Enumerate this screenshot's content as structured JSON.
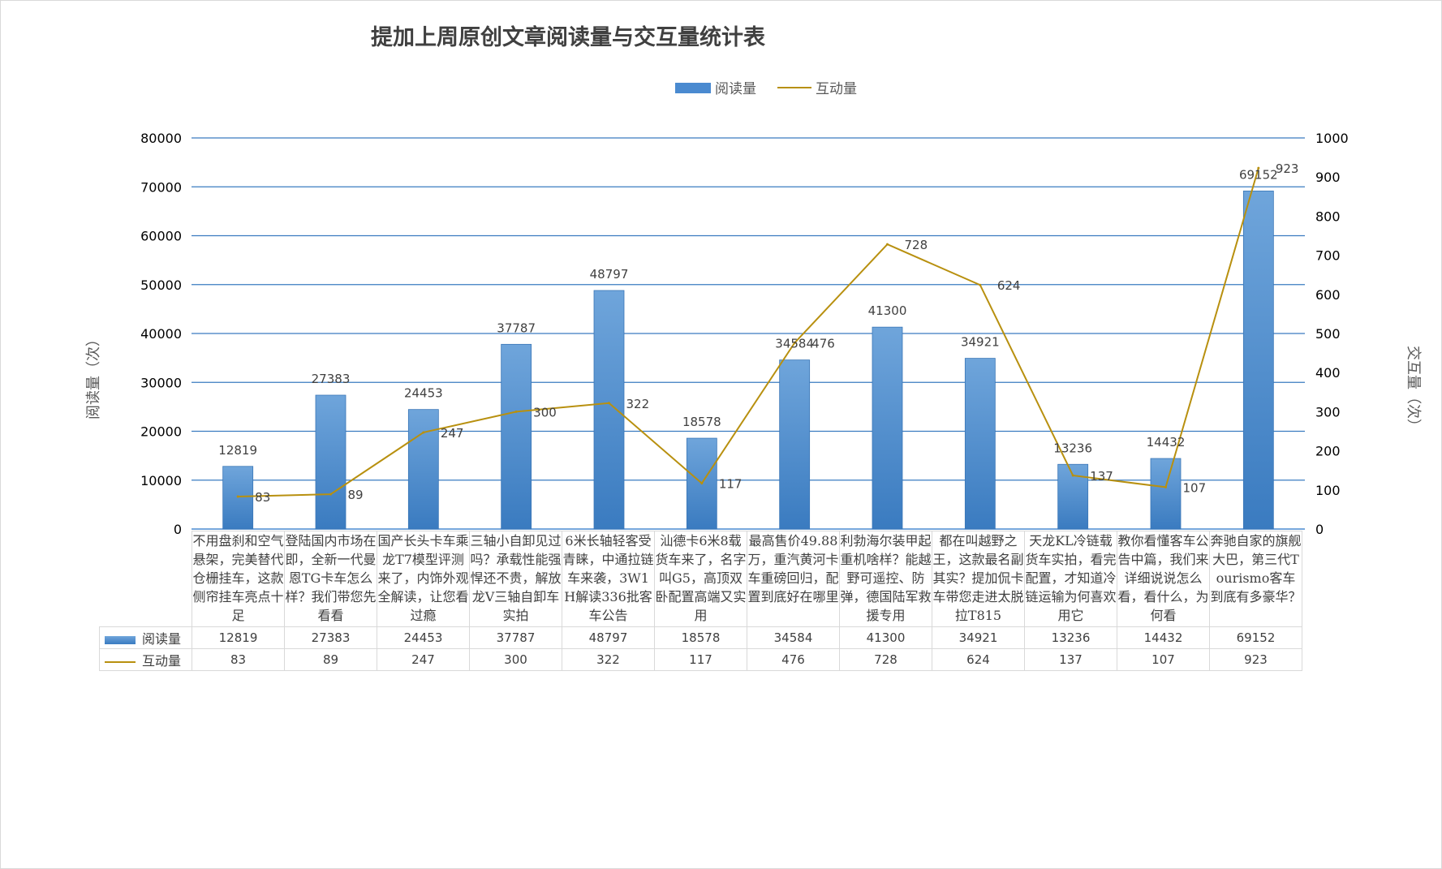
{
  "chart_data": {
    "type": "bar",
    "title": "提加上周原创文章阅读量与交互量统计表",
    "ylabel": "阅读量（次）",
    "y2label": "交互量（次）",
    "ylim": [
      0,
      80000
    ],
    "y2lim": [
      0,
      1000
    ],
    "yticks": [
      "0",
      "10000",
      "20000",
      "30000",
      "40000",
      "50000",
      "60000",
      "70000",
      "80000"
    ],
    "y2ticks": [
      "0",
      "100",
      "200",
      "300",
      "400",
      "500",
      "600",
      "700",
      "800",
      "900",
      "1000"
    ],
    "legend_position": "top-center",
    "grid": true,
    "categories": [
      "不用盘刹和空气悬架，完美替代仓栅挂车，这款侧帘挂车亮点十足",
      "登陆国内市场在即，全新一代曼恩TG卡车怎么样？我们带您先看看",
      "国产长头卡车乘龙T7模型评测来了，内饰外观全解读，让您看过瘾",
      "三轴小自卸见过吗？承载性能强悍还不贵，解放龙V三轴自卸车实拍",
      "6米长轴轻客受青睐，中通拉链车来袭，3W1H解读336批客车公告",
      "汕德卡6米8载货车来了，名字叫G5，高顶双卧配置高端又实用",
      "最高售价49.88万，重汽黄河卡车重磅回归，配置到底好在哪里",
      "利勃海尔装甲起重机啥样？能越野可遥控、防弹，德国陆军救援专用",
      "都在叫越野之王，这款最名副其实？提加侃卡车带您走进太脱拉T815",
      "天龙KL冷链载货车实拍，看完配置，才知道冷链运输为何喜欢用它",
      "教你看懂客车公告中篇，我们来详细说说怎么看，看什么，为何看",
      "奔驰自家的旗舰大巴，第三代Tourismo客车到底有多豪华？"
    ],
    "series": [
      {
        "name": "阅读量",
        "type": "bar",
        "axis": "left",
        "color": "#4a8ad0",
        "values": [
          12819,
          27383,
          24453,
          37787,
          48797,
          18578,
          34584,
          41300,
          34921,
          13236,
          14432,
          69152
        ],
        "labels": [
          "12819",
          "27383",
          "24453",
          "37787",
          "48797",
          "18578",
          "34584",
          "41300",
          "34921",
          "13236",
          "14432",
          "69152"
        ]
      },
      {
        "name": "互动量",
        "type": "line",
        "axis": "right",
        "color": "#b8900f",
        "values": [
          83,
          89,
          247,
          300,
          322,
          117,
          476,
          728,
          624,
          137,
          107,
          923
        ],
        "labels": [
          "83",
          "89",
          "247",
          "300",
          "322",
          "117",
          "476",
          "728",
          "624",
          "137",
          "107",
          "923"
        ]
      }
    ]
  }
}
